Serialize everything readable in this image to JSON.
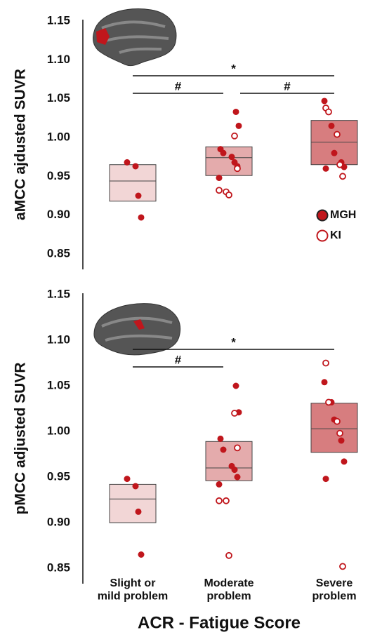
{
  "x_axis": {
    "label": "ACR - Fatigue Score",
    "categories": [
      "Slight or\nmild problem",
      "Moderate\nproblem",
      "Severe\nproblem"
    ]
  },
  "chart_data": [
    {
      "type": "strip",
      "y_label": "aMCC ajdusted SUVR",
      "ylim": [
        0.85,
        1.15
      ],
      "yticks": [
        {
          "value": 0.85,
          "label": "0.85"
        },
        {
          "value": 0.9,
          "label": "0.90"
        },
        {
          "value": 0.95,
          "label": "0.95"
        },
        {
          "value": 1.0,
          "label": "1.00"
        },
        {
          "value": 1.05,
          "label": "1.05"
        },
        {
          "value": 1.1,
          "label": "1.10"
        },
        {
          "value": 1.15,
          "label": "1.15"
        }
      ],
      "legend": "lower right",
      "boxes": [
        {
          "low": 0.918,
          "mid": 0.944,
          "high": 0.965,
          "color": "#f2d6d6"
        },
        {
          "low": 0.951,
          "mid": 0.974,
          "high": 0.988,
          "color": "#e4abac"
        },
        {
          "low": 0.965,
          "mid": 0.994,
          "high": 1.022,
          "color": "#d77d7f"
        }
      ],
      "series": [
        {
          "name": "MGH",
          "color": "#c0161c",
          "hollow": false,
          "values": [
            [
              0.968,
              0.963,
              0.925,
              0.897
            ],
            [
              1.033,
              1.015,
              0.985,
              0.98,
              0.975,
              0.968,
              0.963,
              0.948
            ],
            [
              1.047,
              1.015,
              0.98,
              0.968,
              0.962,
              0.96
            ]
          ]
        },
        {
          "name": "KI",
          "color": "#c0161c",
          "hollow": true,
          "values": [
            [],
            [
              1.002,
              0.96,
              0.932,
              0.93,
              0.926
            ],
            [
              1.038,
              1.033,
              1.004,
              0.965,
              0.95
            ]
          ]
        }
      ],
      "annotations": [
        {
          "from": 0,
          "to": 2,
          "label": "*"
        },
        {
          "from": 0,
          "to": 1,
          "label": "#"
        },
        {
          "from": 1,
          "to": 2,
          "label": "#"
        }
      ]
    },
    {
      "type": "strip",
      "y_label": "pMCC adjusted SUVR",
      "ylim": [
        0.85,
        1.15
      ],
      "yticks": [
        {
          "value": 0.85,
          "label": "0.85"
        },
        {
          "value": 0.9,
          "label": "0.90"
        },
        {
          "value": 0.95,
          "label": "0.95"
        },
        {
          "value": 1.0,
          "label": "1.00"
        },
        {
          "value": 1.05,
          "label": "1.05"
        },
        {
          "value": 1.1,
          "label": "1.10"
        },
        {
          "value": 1.15,
          "label": "1.15"
        }
      ],
      "boxes": [
        {
          "low": 0.9,
          "mid": 0.926,
          "high": 0.942,
          "color": "#f2d6d6"
        },
        {
          "low": 0.946,
          "mid": 0.96,
          "high": 0.989,
          "color": "#e4abac"
        },
        {
          "low": 0.977,
          "mid": 1.003,
          "high": 1.031,
          "color": "#d77d7f"
        }
      ],
      "series": [
        {
          "color": "#c0161c",
          "hollow": false,
          "values": [
            [
              0.948,
              0.94,
              0.912,
              0.865
            ],
            [
              1.05,
              1.021,
              0.992,
              0.98,
              0.962,
              0.958,
              0.95,
              0.942
            ],
            [
              1.054,
              1.032,
              1.013,
              0.99,
              0.967,
              0.948
            ]
          ]
        },
        {
          "color": "#c0161c",
          "hollow": true,
          "values": [
            [],
            [
              1.02,
              0.982,
              0.924,
              0.924,
              0.864
            ],
            [
              1.075,
              1.032,
              1.011,
              0.998,
              0.852
            ]
          ]
        }
      ],
      "annotations": [
        {
          "from": 0,
          "to": 2,
          "label": "*"
        },
        {
          "from": 0,
          "to": 1,
          "label": "#"
        }
      ]
    }
  ]
}
